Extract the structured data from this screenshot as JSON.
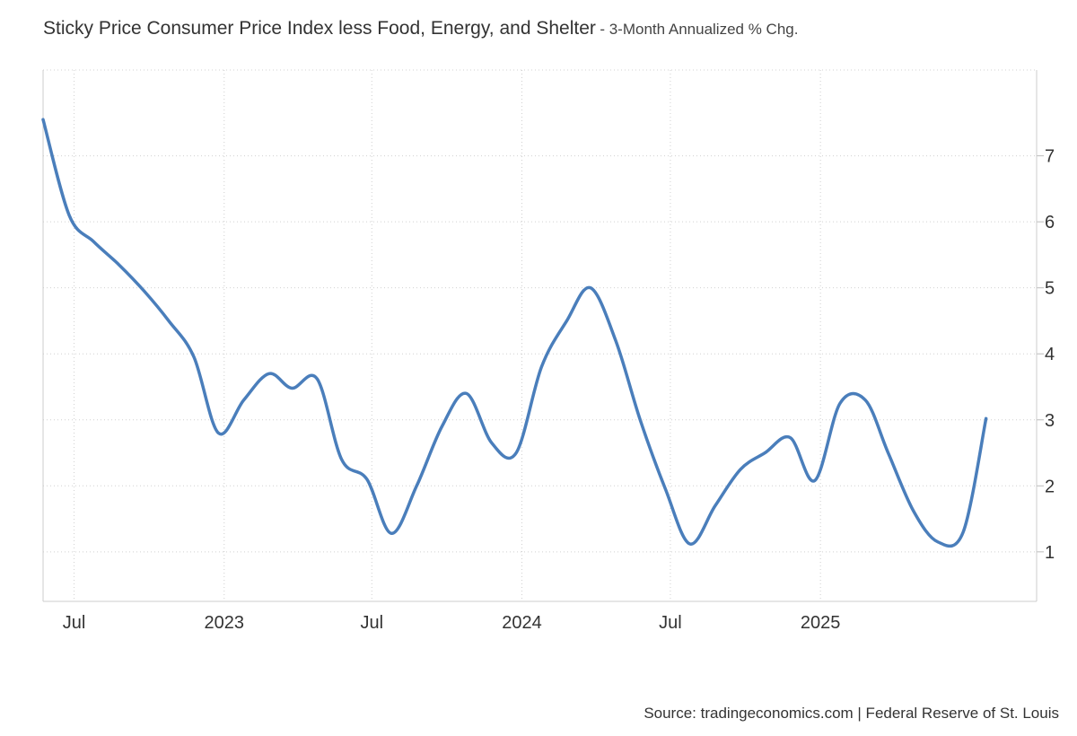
{
  "header": {
    "title": "Sticky Price Consumer Price Index less Food, Energy, and Shelter",
    "subtitle": "- 3-Month Annualized % Chg."
  },
  "footer": {
    "source": "Source: tradingeconomics.com | Federal Reserve of St. Louis"
  },
  "chart_data": {
    "type": "line",
    "title": "Sticky Price Consumer Price Index less Food, Energy, and Shelter",
    "subtitle": "- 3-Month Annualized % Chg.",
    "xlabel": "",
    "ylabel": "",
    "y_axis_side": "right",
    "ylim": [
      0.25,
      8.3
    ],
    "xlim": [
      "2022-05-24",
      "2025-09-23"
    ],
    "grid": true,
    "line_color": "#4a7ebb",
    "x_ticks": [
      {
        "date": "2022-07-01",
        "label": "Jul"
      },
      {
        "date": "2023-01-01",
        "label": "2023"
      },
      {
        "date": "2023-07-01",
        "label": "Jul"
      },
      {
        "date": "2024-01-01",
        "label": "2024"
      },
      {
        "date": "2024-07-01",
        "label": "Jul"
      },
      {
        "date": "2025-01-01",
        "label": "2025"
      }
    ],
    "y_ticks": [
      1,
      2,
      3,
      4,
      5,
      6,
      7
    ],
    "series": [
      {
        "values": [
          {
            "x": "2022-05-24",
            "y": 7.55
          },
          {
            "x": "2022-06-25",
            "y": 6.1
          },
          {
            "x": "2022-07-25",
            "y": 5.7
          },
          {
            "x": "2022-08-25",
            "y": 5.35
          },
          {
            "x": "2022-09-25",
            "y": 4.95
          },
          {
            "x": "2022-10-25",
            "y": 4.5
          },
          {
            "x": "2022-11-25",
            "y": 3.95
          },
          {
            "x": "2022-12-25",
            "y": 2.8
          },
          {
            "x": "2023-01-25",
            "y": 3.3
          },
          {
            "x": "2023-02-25",
            "y": 3.7
          },
          {
            "x": "2023-03-25",
            "y": 3.48
          },
          {
            "x": "2023-04-25",
            "y": 3.62
          },
          {
            "x": "2023-05-25",
            "y": 2.4
          },
          {
            "x": "2023-06-25",
            "y": 2.1
          },
          {
            "x": "2023-07-25",
            "y": 1.28
          },
          {
            "x": "2023-08-25",
            "y": 2.0
          },
          {
            "x": "2023-09-25",
            "y": 2.9
          },
          {
            "x": "2023-10-25",
            "y": 3.4
          },
          {
            "x": "2023-11-25",
            "y": 2.65
          },
          {
            "x": "2023-12-25",
            "y": 2.5
          },
          {
            "x": "2024-01-25",
            "y": 3.8
          },
          {
            "x": "2024-02-25",
            "y": 4.5
          },
          {
            "x": "2024-03-25",
            "y": 5.0
          },
          {
            "x": "2024-04-25",
            "y": 4.2
          },
          {
            "x": "2024-05-25",
            "y": 3.0
          },
          {
            "x": "2024-06-25",
            "y": 1.95
          },
          {
            "x": "2024-07-25",
            "y": 1.12
          },
          {
            "x": "2024-08-25",
            "y": 1.7
          },
          {
            "x": "2024-09-25",
            "y": 2.25
          },
          {
            "x": "2024-10-25",
            "y": 2.5
          },
          {
            "x": "2024-11-25",
            "y": 2.73
          },
          {
            "x": "2024-12-25",
            "y": 2.08
          },
          {
            "x": "2025-01-25",
            "y": 3.25
          },
          {
            "x": "2025-02-25",
            "y": 3.3
          },
          {
            "x": "2025-03-25",
            "y": 2.5
          },
          {
            "x": "2025-04-25",
            "y": 1.62
          },
          {
            "x": "2025-05-25",
            "y": 1.15
          },
          {
            "x": "2025-06-25",
            "y": 1.3
          },
          {
            "x": "2025-07-23",
            "y": 3.02
          }
        ]
      }
    ]
  }
}
